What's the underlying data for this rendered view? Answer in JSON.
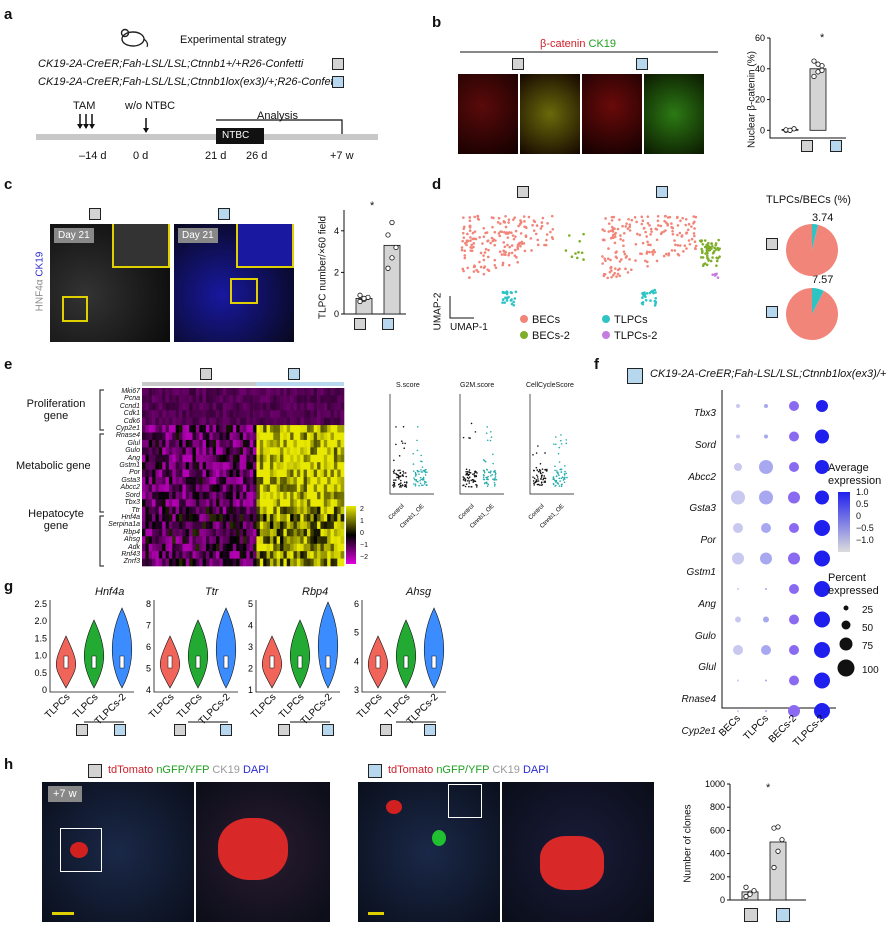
{
  "panels": {
    "a": {
      "label": "a",
      "title": "Experimental strategy",
      "genotype_control": "CK19-2A-CreER;Fah-LSL/LSL;Ctnnb1+/+R26-Confetti",
      "genotype_oe": "CK19-2A-CreER;Fah-LSL/LSL;Ctnnb1lox(ex3)/+;R26-Confetti",
      "tam": "TAM",
      "wo_ntbc": "w/o NTBC",
      "ntbc": "NTBC",
      "analysis": "Analysis",
      "timepoints": [
        "–14 d",
        "0 d",
        "21 d",
        "26 d",
        "+7 w"
      ]
    },
    "b": {
      "label": "b",
      "stain_red": "β-catenin",
      "stain_green": "CK19",
      "ylabel": "Nuclear β-catenin (%)",
      "star": "*"
    },
    "c": {
      "label": "c",
      "day_labels": [
        "Day 21",
        "Day 21"
      ],
      "side_label_grey": "HNF4α",
      "side_label_blue": "CK19",
      "ylabel": "TLPC number/×60 field",
      "star": "*"
    },
    "d": {
      "label": "d",
      "umap2": "UMAP-2",
      "umap1": "UMAP-1",
      "legend": [
        "BECs",
        "TLPCs",
        "BECs-2",
        "TLPCs-2"
      ],
      "legend_colors": [
        "#f28579",
        "#2ec4c4",
        "#7fae2a",
        "#c77be0"
      ],
      "pie_title": "TLPCs/BECs (%)",
      "pie_values": [
        "3.74",
        "7.57"
      ]
    },
    "e": {
      "label": "e",
      "groups": [
        "Proliferation gene",
        "Metabolic gene",
        "Hepatocyte gene"
      ],
      "genes": [
        "Mki67",
        "Pcna",
        "Ccnd1",
        "Cdk1",
        "Cdk6",
        "Cyp2e1",
        "Rnase4",
        "Glul",
        "Gulo",
        "Ang",
        "Gstm1",
        "Por",
        "Gsta3",
        "Abcc2",
        "Sord",
        "Tbx3",
        "Ttr",
        "Hnf4a",
        "Serpina1a",
        "Rbp4",
        "Ahsg",
        "Adk",
        "Rnf43",
        "Znrf3"
      ],
      "colorbar_ticks": [
        "2",
        "1",
        "0",
        "−1",
        "−2"
      ],
      "score_titles": [
        "S.score",
        "G2M.score",
        "CellCycleScore"
      ],
      "score_xlabels": [
        "Control",
        "Ctnnb1_OE"
      ]
    },
    "f": {
      "label": "f",
      "header": "CK19-2A-CreER;Fah-LSL/LSL;Ctnnb1lox(ex3)/+",
      "genes": [
        "Tbx3",
        "Sord",
        "Abcc2",
        "Gsta3",
        "Por",
        "Gstm1",
        "Ang",
        "Gulo",
        "Glul",
        "Rnase4",
        "Cyp2e1"
      ],
      "clusters": [
        "BECs",
        "TLPCs",
        "BECs-2",
        "TLPCs-2"
      ],
      "avg_title": "Average expression",
      "avg_ticks": [
        "1.0",
        "0.5",
        "0",
        "−0.5",
        "−1.0"
      ],
      "pct_title": "Percent expressed",
      "pct_values": [
        "25",
        "50",
        "75",
        "100"
      ]
    },
    "g": {
      "label": "g",
      "genes": [
        "Hnf4a",
        "Ttr",
        "Rbp4",
        "Ahsg"
      ],
      "cats": [
        "TLPCs",
        "TLPCs",
        "TLPCs-2"
      ]
    },
    "h": {
      "label": "h",
      "stain_red": "tdTomato",
      "stain_green": "nGFP/YFP",
      "stain_white": "CK19",
      "stain_blue": "DAPI",
      "time": "+7 w",
      "ylabel": "Number of clones",
      "star": "*"
    }
  },
  "chart_data": [
    {
      "type": "bar",
      "id": "b-bar",
      "categories": [
        "Control",
        "Ctnnb1 OE"
      ],
      "values": [
        0.5,
        40
      ],
      "ylabel": "Nuclear β-catenin (%)",
      "yticks": [
        0,
        20,
        40,
        60
      ],
      "ylim": [
        -5,
        60
      ],
      "points": [
        [
          0,
          0,
          1,
          0.3,
          0
        ],
        [
          35,
          38,
          42,
          45,
          43,
          39
        ]
      ]
    },
    {
      "type": "bar",
      "id": "c-bar",
      "categories": [
        "Control",
        "Ctnnb1 OE"
      ],
      "values": [
        0.75,
        3.3
      ],
      "ylabel": "TLPC number/×60 field",
      "yticks": [
        0,
        2,
        4
      ],
      "ylim": [
        0,
        5
      ],
      "points": [
        [
          0.6,
          0.7,
          0.8,
          0.9,
          0.75
        ],
        [
          2.2,
          2.7,
          3.2,
          3.8,
          4.4
        ]
      ]
    },
    {
      "type": "pie",
      "id": "d-pie-control",
      "values": [
        3.74,
        96.26
      ],
      "colors": [
        "#2ec4c4",
        "#f28579"
      ]
    },
    {
      "type": "pie",
      "id": "d-pie-oe",
      "values": [
        7.57,
        92.43
      ],
      "colors": [
        "#2ec4c4",
        "#f28579"
      ]
    },
    {
      "type": "bar",
      "id": "h-bar",
      "categories": [
        "Control",
        "Ctnnb1 OE"
      ],
      "values": [
        70,
        500
      ],
      "ylabel": "Number of clones",
      "yticks": [
        0,
        200,
        400,
        600,
        800,
        1000
      ],
      "ylim": [
        0,
        1000
      ],
      "points": [
        [
          30,
          60,
          80,
          110,
          50
        ],
        [
          280,
          420,
          520,
          620,
          630
        ]
      ]
    }
  ]
}
